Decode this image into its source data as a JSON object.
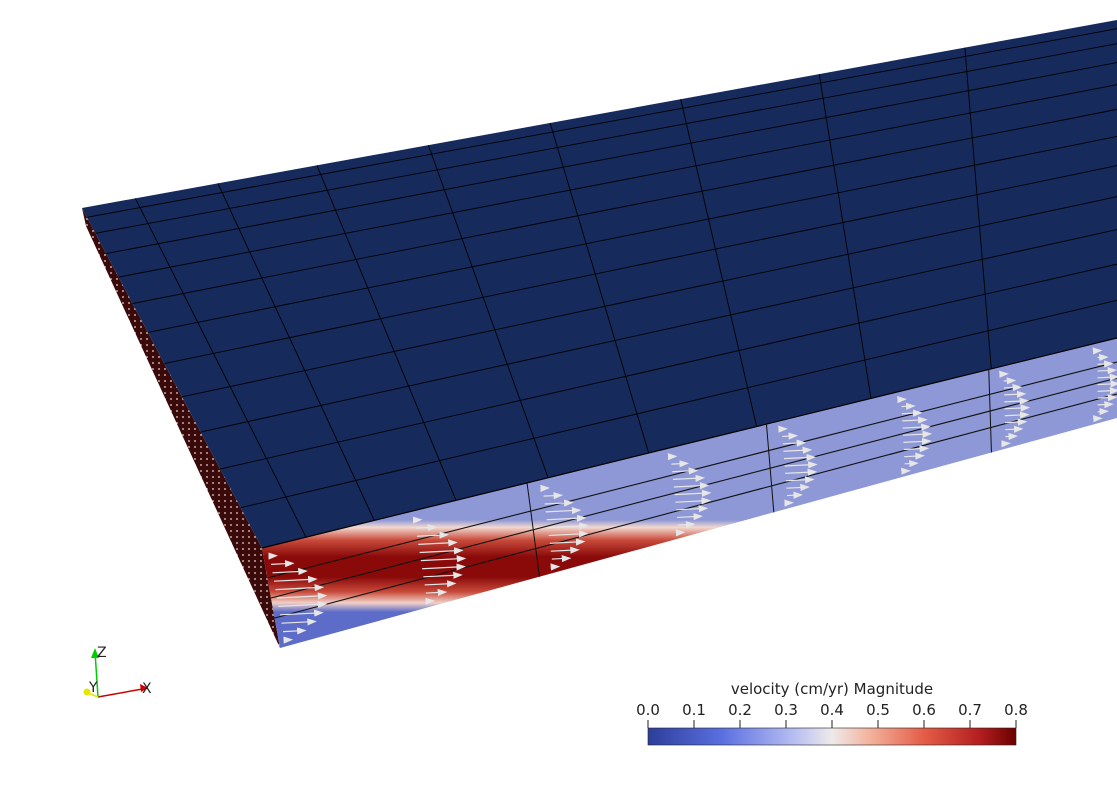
{
  "colorbar": {
    "title": "velocity (cm/yr) Magnitude",
    "range": [
      0.0,
      0.8
    ],
    "ticks": [
      "0.0",
      "0.1",
      "0.2",
      "0.3",
      "0.4",
      "0.5",
      "0.6",
      "0.7",
      "0.8"
    ],
    "colors": {
      "low": "#3b4cc0",
      "mid": "#dddddd",
      "high": "#7a0403"
    }
  },
  "orientation_axes": {
    "x_label": "X",
    "y_label": "Y",
    "z_label": "Z",
    "x_color": "#cc0000",
    "y_color": "#e6e600",
    "z_color": "#00cc00"
  },
  "scene": {
    "top_surface_color": "#162a5c",
    "grid_line_color": "#000000",
    "side_face_colormap": "velocity magnitude (cool-warm)"
  }
}
